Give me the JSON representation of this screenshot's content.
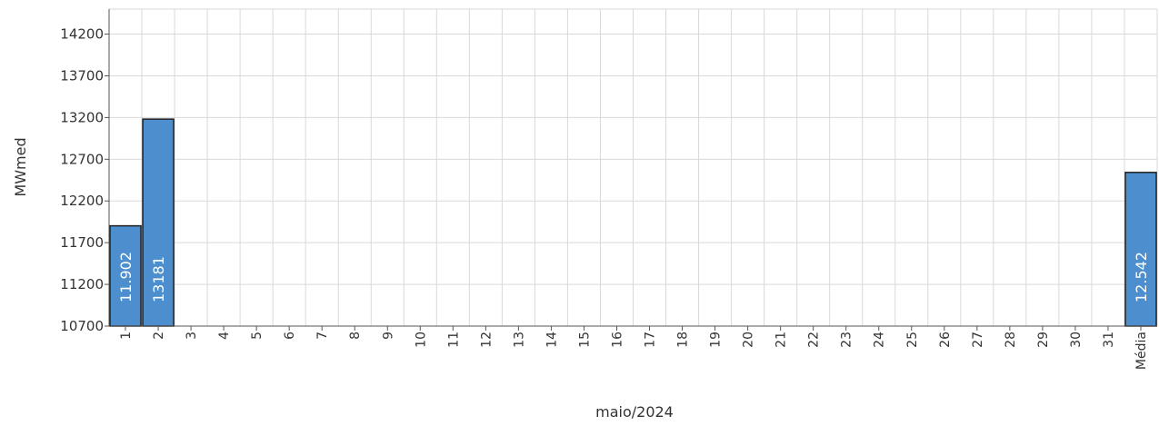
{
  "chart_data": {
    "type": "bar",
    "title": "",
    "xlabel": "maio/2024",
    "ylabel": "MWmed",
    "ylim": [
      10700,
      14500
    ],
    "yticks": [
      10700,
      11200,
      11700,
      12200,
      12700,
      13200,
      13700,
      14200
    ],
    "categories": [
      "1",
      "2",
      "3",
      "4",
      "5",
      "6",
      "7",
      "8",
      "9",
      "10",
      "11",
      "12",
      "13",
      "14",
      "15",
      "16",
      "17",
      "18",
      "19",
      "20",
      "21",
      "22",
      "23",
      "24",
      "25",
      "26",
      "27",
      "28",
      "29",
      "30",
      "31",
      "Média"
    ],
    "values": [
      11902,
      13181,
      null,
      null,
      null,
      null,
      null,
      null,
      null,
      null,
      null,
      null,
      null,
      null,
      null,
      null,
      null,
      null,
      null,
      null,
      null,
      null,
      null,
      null,
      null,
      null,
      null,
      null,
      null,
      null,
      null,
      12542
    ],
    "data_labels": [
      "11.902",
      "13181",
      "",
      "",
      "",
      "",
      "",
      "",
      "",
      "",
      "",
      "",
      "",
      "",
      "",
      "",
      "",
      "",
      "",
      "",
      "",
      "",
      "",
      "",
      "",
      "",
      "",
      "",
      "",
      "",
      "",
      "12.542"
    ],
    "grid": true,
    "legend": "none",
    "bar_color": "#4d8fce",
    "bar_stroke": "#1f1f1f",
    "grid_color": "#d9d9d9"
  }
}
